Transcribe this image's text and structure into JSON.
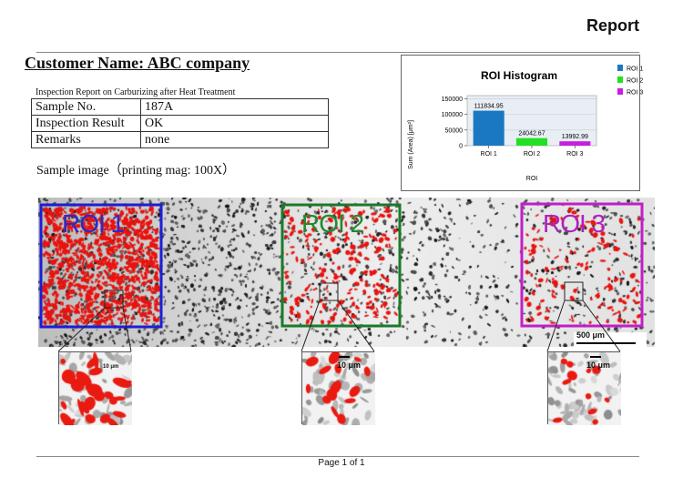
{
  "header": {
    "title": "Report"
  },
  "customer": {
    "label": "Customer Name: ABC company"
  },
  "report": {
    "subtitle": "Inspection Report on Carburizing after Heat Treatment",
    "rows": [
      {
        "key": "Sample No.",
        "value": "187A"
      },
      {
        "key": "Inspection Result",
        "value": "OK"
      },
      {
        "key": "Remarks",
        "value": "none"
      }
    ],
    "sample_caption": "Sample image（printing mag: 100X）"
  },
  "image": {
    "rois": [
      {
        "label": "ROI 1",
        "color": "#1d1dd6",
        "text_color": "#2a2ac8"
      },
      {
        "label": "ROI 2",
        "color": "#1a7a2a",
        "text_color": "#1f8a30"
      },
      {
        "label": "ROI 3",
        "color": "#c21ec8",
        "text_color": "#b11fbf"
      }
    ],
    "scale_main": "500 μm",
    "scale_zoom": "10 μm"
  },
  "chart_data": {
    "type": "bar",
    "title": "ROI Histogram",
    "xlabel": "ROI",
    "ylabel": "Sum (Area) [μm²]",
    "categories": [
      "ROI 1",
      "ROI 2",
      "ROI 3"
    ],
    "values": [
      111834.95,
      24042.67,
      13992.99
    ],
    "value_labels": [
      "111834.95",
      "24042.67",
      "13992.99"
    ],
    "colors": [
      "#1a78c2",
      "#22e022",
      "#c81ee0"
    ],
    "ylim": [
      0,
      160000
    ],
    "yticks": [
      0,
      50000,
      100000,
      150000
    ],
    "legend": [
      "ROI 1",
      "ROI 2",
      "ROI 3"
    ],
    "legend_position": "right",
    "grid": true
  },
  "footer": {
    "page": "Page 1 of 1"
  }
}
